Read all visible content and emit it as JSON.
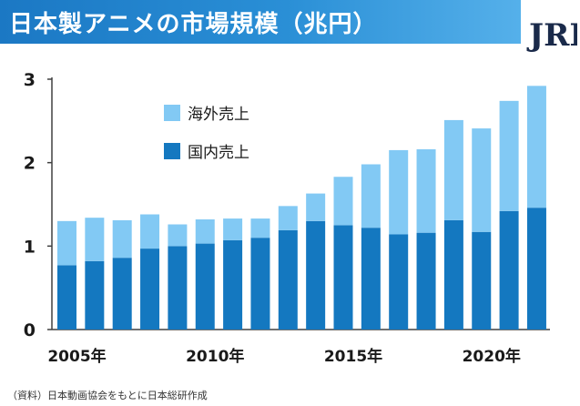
{
  "header": {
    "title": "日本製アニメの市場規模（兆円）",
    "logo_text": "JRI",
    "title_bar_color": "#1b78c4"
  },
  "source_note": "（資料）日本動画協会をもとに日本総研作成",
  "chart_data": {
    "type": "bar",
    "stacked": true,
    "title": "日本製アニメの市場規模（兆円）",
    "xlabel": "",
    "ylabel": "",
    "ylim": [
      0,
      3
    ],
    "yticks": [
      0,
      1,
      2,
      3
    ],
    "grid": false,
    "legend_placement": "top-left",
    "categories": [
      "2005",
      "2006",
      "2007",
      "2008",
      "2009",
      "2010",
      "2011",
      "2012",
      "2013",
      "2014",
      "2015",
      "2016",
      "2017",
      "2018",
      "2019",
      "2020",
      "2021",
      "2022"
    ],
    "xtick_labels": [
      {
        "category": "2005",
        "label": "2005年"
      },
      {
        "category": "2010",
        "label": "2010年"
      },
      {
        "category": "2015",
        "label": "2015年"
      },
      {
        "category": "2020",
        "label": "2020年"
      }
    ],
    "series": [
      {
        "name": "国内売上",
        "color": "#1478c0",
        "values": [
          0.77,
          0.82,
          0.86,
          0.97,
          1.0,
          1.03,
          1.07,
          1.1,
          1.19,
          1.3,
          1.25,
          1.22,
          1.14,
          1.16,
          1.31,
          1.17,
          1.42,
          1.46
        ]
      },
      {
        "name": "海外売上",
        "color": "#82c9f4",
        "values": [
          0.53,
          0.52,
          0.45,
          0.41,
          0.26,
          0.29,
          0.26,
          0.23,
          0.29,
          0.33,
          0.58,
          0.76,
          1.01,
          1.0,
          1.2,
          1.24,
          1.32,
          1.46
        ]
      }
    ],
    "legend_order": [
      "海外売上",
      "国内売上"
    ]
  }
}
